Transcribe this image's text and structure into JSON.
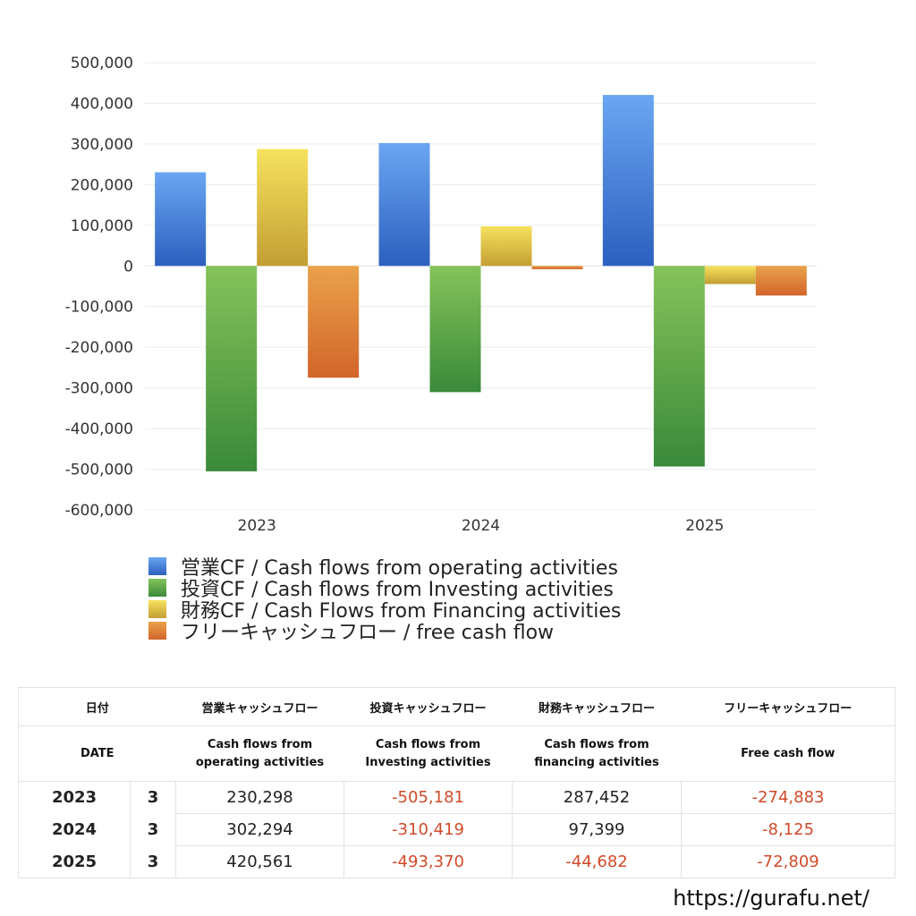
{
  "chart_data": {
    "type": "bar",
    "categories": [
      "2023",
      "2024",
      "2025"
    ],
    "ylim": [
      -600000,
      500000
    ],
    "yticks": [
      500000,
      400000,
      300000,
      200000,
      100000,
      0,
      -100000,
      -200000,
      -300000,
      -400000,
      -500000,
      -600000
    ],
    "ytick_labels": [
      "500,000",
      "400,000",
      "300,000",
      "200,000",
      "100,000",
      "0",
      "-100,000",
      "-200,000",
      "-300,000",
      "-400,000",
      "-500,000",
      "-600,000"
    ],
    "grid": true,
    "legend_position": "bottom-left",
    "series": [
      {
        "name": "営業CF / Cash flows from operating activities",
        "values": [
          230298,
          302294,
          420561
        ],
        "color_top": "#6aa6f2",
        "color_bottom": "#2d5fbf"
      },
      {
        "name": "投資CF / Cash flows from Investing activities",
        "values": [
          -505181,
          -310419,
          -493370
        ],
        "color_top": "#85c35a",
        "color_bottom": "#3a8a3a"
      },
      {
        "name": "財務CF / Cash Flows from Financing activities",
        "values": [
          287452,
          97399,
          -44682
        ],
        "color_top": "#f6e25e",
        "color_bottom": "#c39e33"
      },
      {
        "name": "フリーキャッシュフロー / free cash flow",
        "values": [
          -274883,
          -8125,
          -72809
        ],
        "color_top": "#eaa24a",
        "color_bottom": "#d2652a"
      }
    ]
  },
  "table": {
    "headers_jp": [
      "日付",
      "営業キャッシュフロー",
      "投資キャッシュフロー",
      "財務キャッシュフロー",
      "フリーキャッシュフロー"
    ],
    "date_label": "DATE",
    "headers_en": [
      [
        "Cash flows from",
        "operating activities"
      ],
      [
        "Cash flows from",
        "Investing activities"
      ],
      [
        "Cash flows from",
        "financing activities"
      ],
      [
        "Free cash flow",
        ""
      ]
    ],
    "rows": [
      {
        "year": "2023",
        "month": "3",
        "operating": "230,298",
        "investing": "-505,181",
        "financing": "287,452",
        "free": "-274,883"
      },
      {
        "year": "2024",
        "month": "3",
        "operating": "302,294",
        "investing": "-310,419",
        "financing": "97,399",
        "free": "-8,125"
      },
      {
        "year": "2025",
        "month": "3",
        "operating": "420,561",
        "investing": "-493,370",
        "financing": "-44,682",
        "free": "-72,809"
      }
    ]
  },
  "footer": {
    "site": "https://gurafu.net/"
  }
}
